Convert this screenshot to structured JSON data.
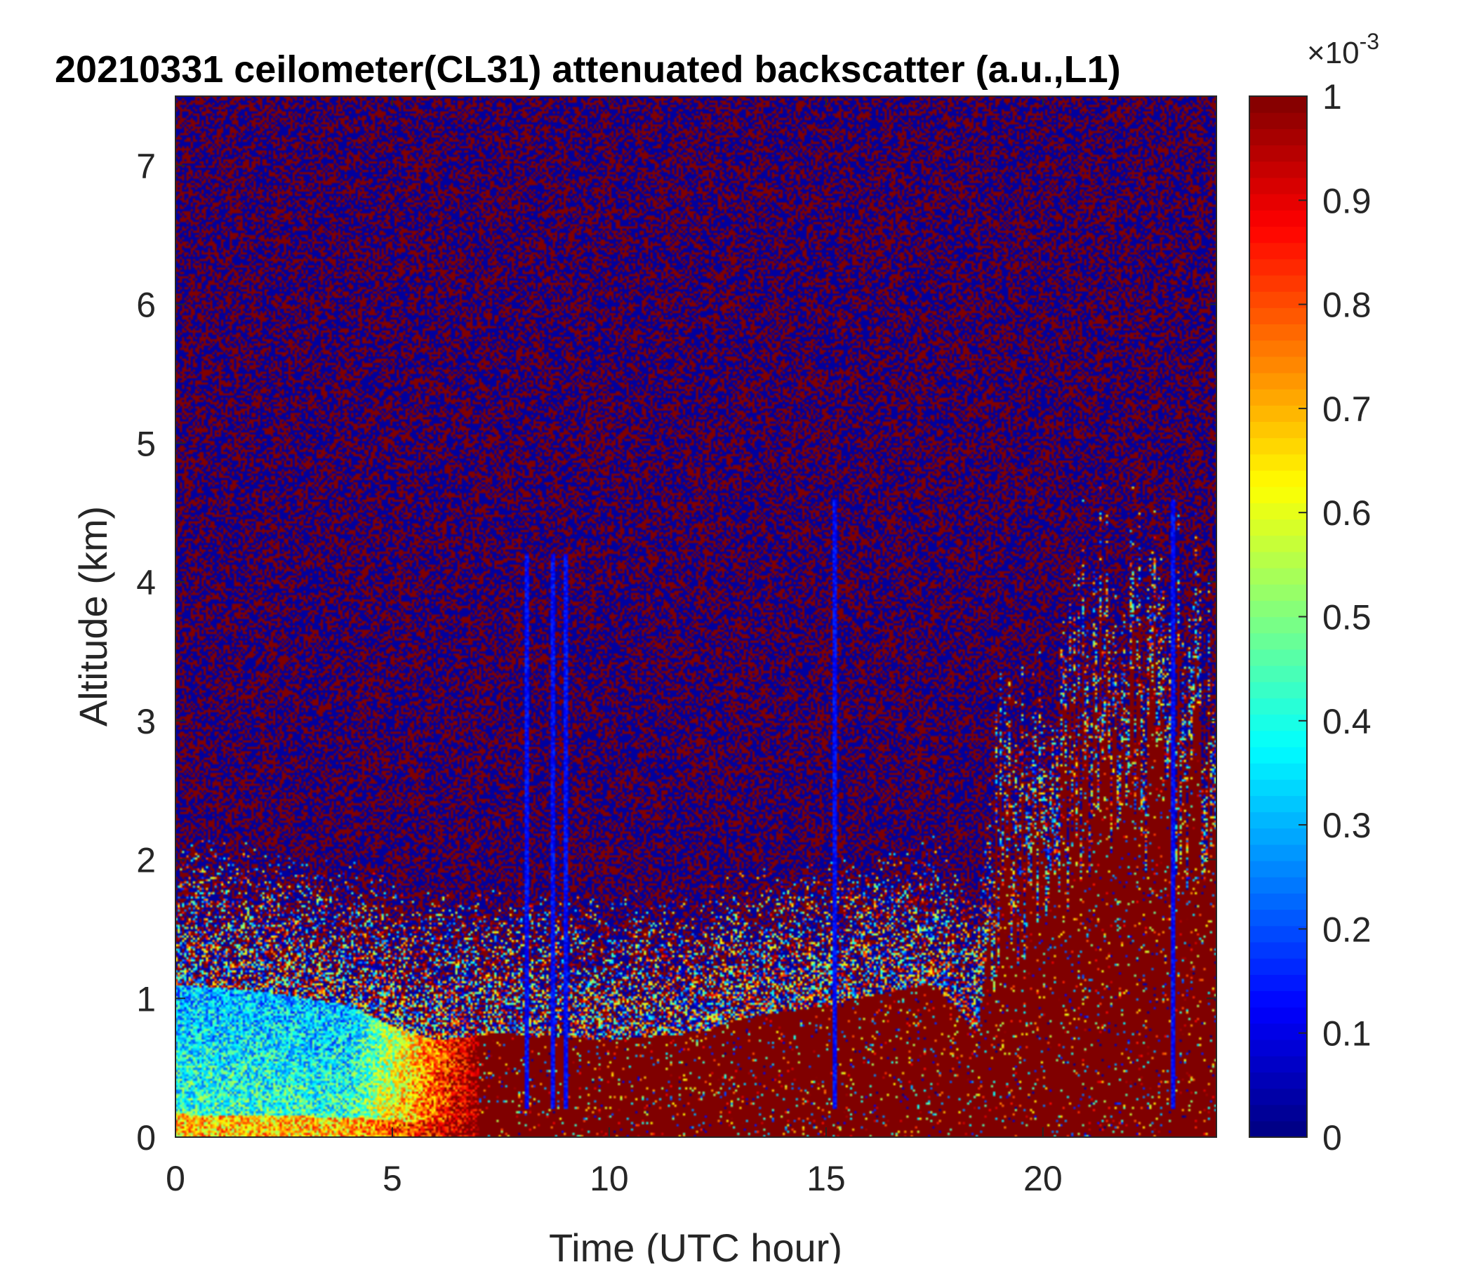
{
  "chart_data": {
    "type": "heatmap",
    "title": "20210331 ceilometer(CL31) attenuated backscatter (a.u.,L1)",
    "xlabel": "Time (UTC hour)",
    "ylabel": "Altitude (km)",
    "xlim": [
      0,
      24
    ],
    "ylim": [
      0,
      7.5
    ],
    "x_ticks": [
      0,
      5,
      10,
      15,
      20
    ],
    "y_ticks": [
      0,
      1,
      2,
      3,
      4,
      5,
      6,
      7
    ],
    "colorbar": {
      "clim": [
        0,
        1
      ],
      "exponent_label": "×10",
      "exponent_power": "-3",
      "ticks": [
        0,
        0.1,
        0.2,
        0.3,
        0.4,
        0.5,
        0.6,
        0.7,
        0.8,
        0.9,
        1
      ],
      "tick_labels": [
        "0",
        "0.1",
        "0.2",
        "0.3",
        "0.4",
        "0.5",
        "0.6",
        "0.7",
        "0.8",
        "0.9",
        "1"
      ],
      "colormap": "jet"
    },
    "features": {
      "surface_layer_top_km": [
        [
          0,
          1.1
        ],
        [
          2,
          1.05
        ],
        [
          4,
          0.95
        ],
        [
          5,
          0.8
        ],
        [
          6,
          0.7
        ],
        [
          7.5,
          0.75
        ],
        [
          9,
          0.72
        ],
        [
          10,
          0.7
        ],
        [
          12,
          0.75
        ],
        [
          13,
          0.85
        ],
        [
          15,
          0.95
        ],
        [
          16.5,
          1.05
        ],
        [
          17.5,
          1.1
        ],
        [
          18.5,
          0.75
        ],
        [
          19,
          2.2
        ],
        [
          20,
          2.3
        ],
        [
          21,
          3.3
        ],
        [
          22,
          3.3
        ],
        [
          23,
          3.2
        ],
        [
          24,
          2.9
        ]
      ],
      "profile_gaps_hours": [
        8.1,
        8.7,
        9.0,
        15.2,
        23.0
      ],
      "grid": false,
      "colormap_colors": [
        "#00008f",
        "#0000ff",
        "#00ffff",
        "#ffff00",
        "#ff0000",
        "#800000"
      ]
    }
  }
}
